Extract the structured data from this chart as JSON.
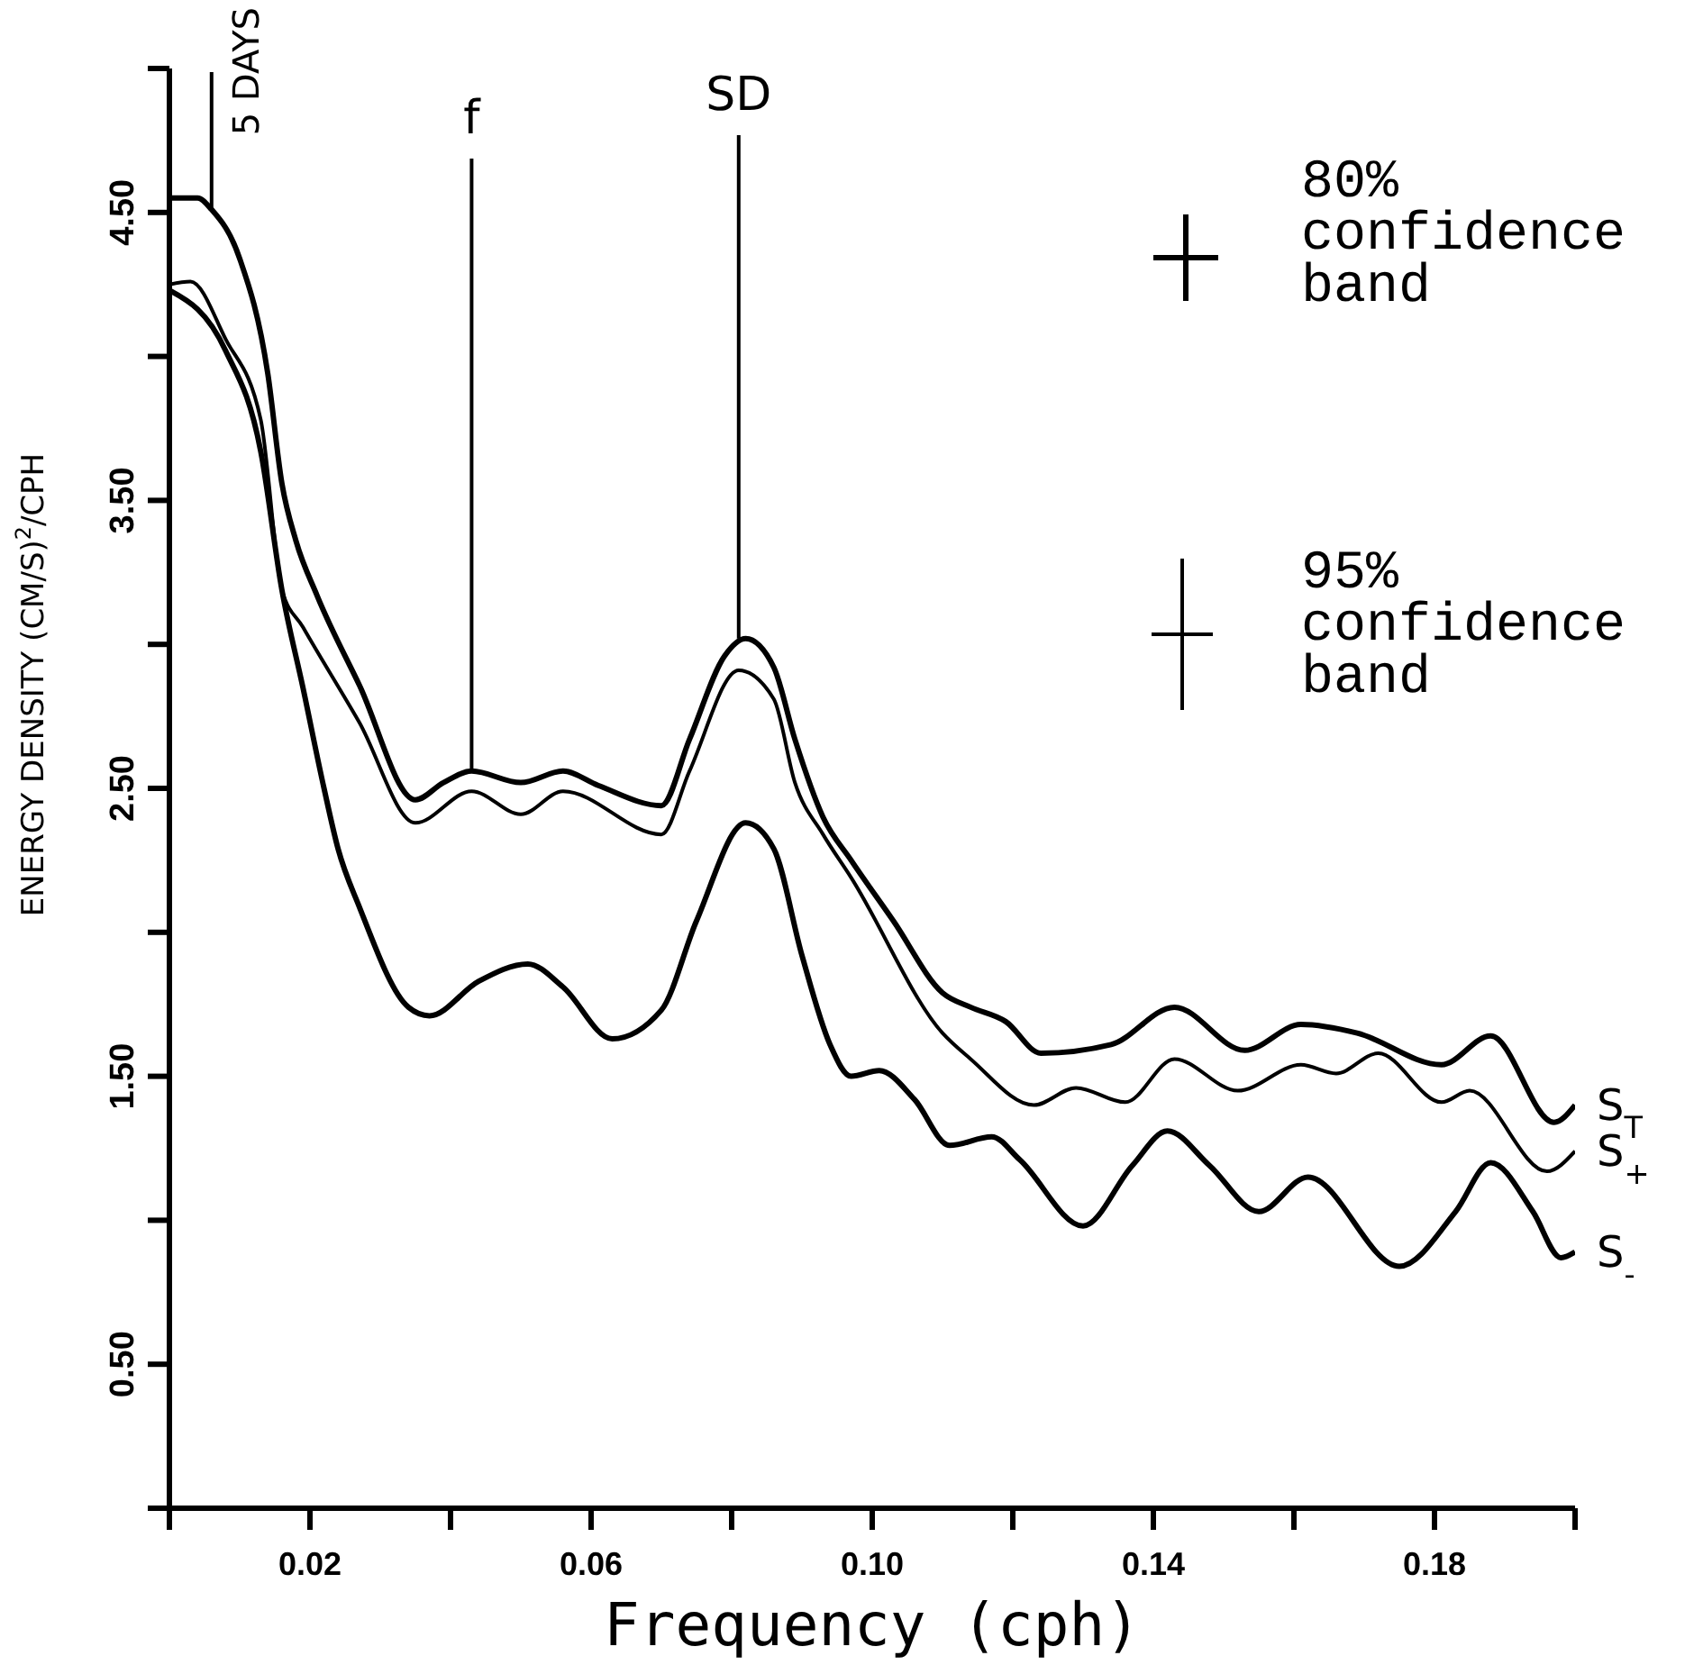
{
  "chart_data": {
    "type": "line",
    "xlabel": "Frequency (cph)",
    "ylabel": "ENERGY DENSITY (CM/S)$^{2}$/CPH",
    "xlim": [
      0,
      0.2
    ],
    "xticks": [
      {
        "value": 0,
        "label": null
      },
      {
        "value": 0.02,
        "label": "0.02"
      },
      {
        "value": 0.04,
        "label": null
      },
      {
        "value": 0.06,
        "label": "0.06"
      },
      {
        "value": 0.08,
        "label": null
      },
      {
        "value": 0.1,
        "label": "0.10"
      },
      {
        "value": 0.12,
        "label": null
      },
      {
        "value": 0.14,
        "label": "0.14"
      },
      {
        "value": 0.16,
        "label": null
      },
      {
        "value": 0.18,
        "label": "0.18"
      },
      {
        "value": 0.2,
        "label": null
      }
    ],
    "ylim": [
      0,
      5
    ],
    "yticks": [
      {
        "value": 0,
        "label": null
      },
      {
        "value": 0.5,
        "label": "0.50"
      },
      {
        "value": 1,
        "label": null
      },
      {
        "value": 1.5,
        "label": "1.50"
      },
      {
        "value": 2,
        "label": null
      },
      {
        "value": 2.5,
        "label": "2.50"
      },
      {
        "value": 3,
        "label": null
      },
      {
        "value": 3.5,
        "label": "3.50"
      },
      {
        "value": 4,
        "label": null
      },
      {
        "value": 4.5,
        "label": "4.50"
      },
      {
        "value": 5,
        "label": null
      }
    ],
    "series": [
      {
        "name": "S$_{T}$",
        "color": "#000000",
        "x": [
          0,
          0.004,
          0.006,
          0.01,
          0.014,
          0.016,
          0.018,
          0.021,
          0.027,
          0.035,
          0.039,
          0.043,
          0.05,
          0.056,
          0.061,
          0.07,
          0.074,
          0.079,
          0.082,
          0.086,
          0.089,
          0.093,
          0.097,
          0.103,
          0.11,
          0.114,
          0.119,
          0.124,
          0.134,
          0.143,
          0.153,
          0.161,
          0.169,
          0.181,
          0.188,
          0.197,
          0.2
        ],
        "values": [
          4.55,
          4.55,
          4.51,
          4.34,
          3.94,
          3.56,
          3.36,
          3.17,
          2.86,
          2.46,
          2.52,
          2.56,
          2.52,
          2.56,
          2.51,
          2.44,
          2.67,
          2.96,
          3.02,
          2.92,
          2.67,
          2.4,
          2.25,
          2.04,
          1.79,
          1.74,
          1.69,
          1.58,
          1.61,
          1.74,
          1.59,
          1.68,
          1.65,
          1.54,
          1.64,
          1.34,
          1.4
        ]
      },
      {
        "name": "S$_{+}$",
        "color": "#000000",
        "x": [
          0,
          0.003,
          0.008,
          0.013,
          0.016,
          0.019,
          0.027,
          0.035,
          0.043,
          0.05,
          0.056,
          0.07,
          0.074,
          0.081,
          0.086,
          0.089,
          0.093,
          0.097,
          0.11,
          0.114,
          0.123,
          0.129,
          0.136,
          0.143,
          0.152,
          0.161,
          0.166,
          0.172,
          0.181,
          0.185,
          0.196,
          0.2
        ],
        "values": [
          4.25,
          4.26,
          4.06,
          3.78,
          3.19,
          3.06,
          2.73,
          2.38,
          2.49,
          2.41,
          2.49,
          2.34,
          2.56,
          2.91,
          2.81,
          2.52,
          2.34,
          2.19,
          1.65,
          1.56,
          1.4,
          1.46,
          1.41,
          1.56,
          1.45,
          1.54,
          1.51,
          1.58,
          1.41,
          1.45,
          1.17,
          1.24
        ]
      },
      {
        "name": "S$_{-}$",
        "color": "#000000",
        "x": [
          0,
          0.008,
          0.013,
          0.016,
          0.019,
          0.022,
          0.024,
          0.027,
          0.034,
          0.037,
          0.044,
          0.051,
          0.056,
          0.063,
          0.07,
          0.075,
          0.082,
          0.086,
          0.09,
          0.094,
          0.097,
          0.101,
          0.106,
          0.111,
          0.117,
          0.121,
          0.13,
          0.137,
          0.142,
          0.148,
          0.155,
          0.162,
          0.175,
          0.183,
          0.188,
          0.194,
          0.198,
          0.2
        ],
        "values": [
          4.23,
          4.02,
          3.67,
          3.19,
          2.85,
          2.5,
          2.29,
          2.09,
          1.74,
          1.71,
          1.83,
          1.89,
          1.81,
          1.63,
          1.73,
          2.04,
          2.38,
          2.29,
          1.92,
          1.61,
          1.5,
          1.52,
          1.42,
          1.26,
          1.29,
          1.21,
          0.98,
          1.19,
          1.31,
          1.19,
          1.03,
          1.15,
          0.84,
          1.03,
          1.2,
          1.03,
          0.87,
          0.89
        ]
      }
    ],
    "annotations": [
      {
        "text": "5 DAYS",
        "x": 0.006,
        "y": 4.51
      },
      {
        "text": "f",
        "x": 0.043,
        "y": 2.56
      },
      {
        "text": "SD",
        "x": 0.081,
        "y": 3.02
      },
      "80% confidence band",
      "95% confidence band"
    ]
  }
}
